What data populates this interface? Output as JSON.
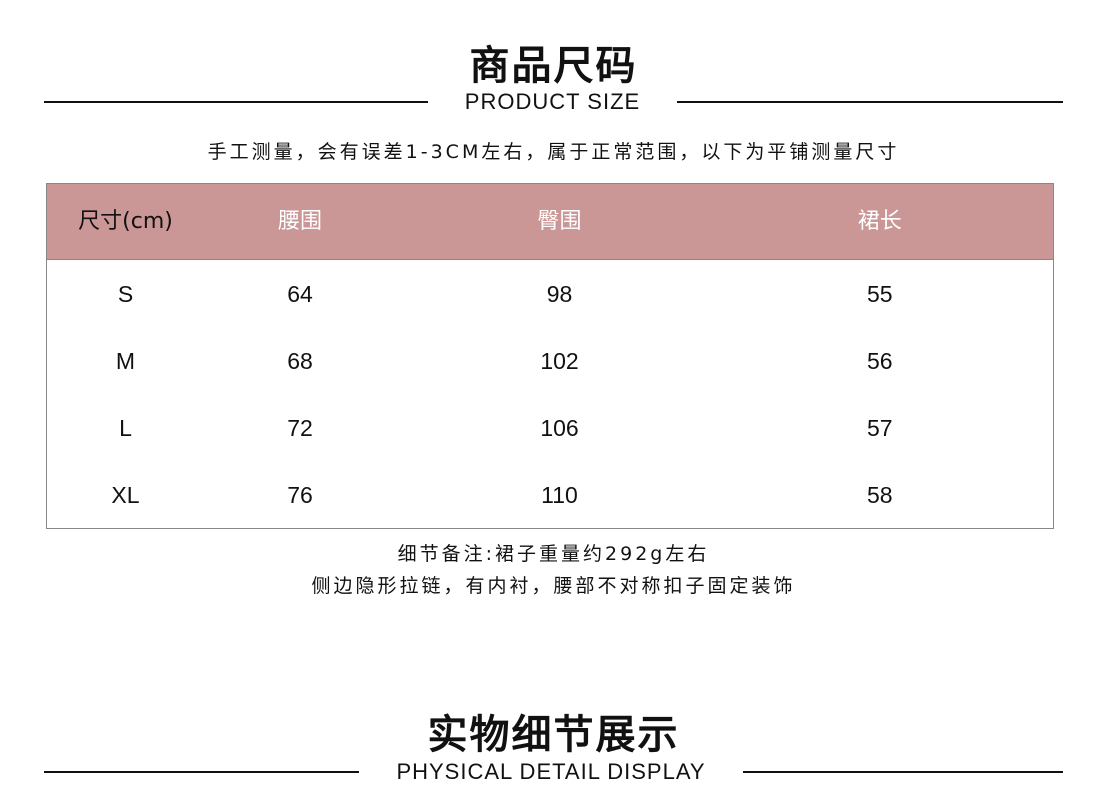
{
  "section1": {
    "title": "商品尺码",
    "subtitle": "PRODUCT SIZE"
  },
  "measure_note": "手工测量，会有误差1-3CM左右，属于正常范围，以下为平铺测量尺寸",
  "table": {
    "headers": [
      "尺寸(cm)",
      "腰围",
      "臀围",
      "裙长"
    ],
    "rows": [
      [
        "S",
        "64",
        "98",
        "55"
      ],
      [
        "M",
        "68",
        "102",
        "56"
      ],
      [
        "L",
        "72",
        "106",
        "57"
      ],
      [
        "XL",
        "76",
        "110",
        "58"
      ]
    ]
  },
  "detail_notes": [
    "细节备注:裙子重量约292g左右",
    "侧边隐形拉链，有内衬，腰部不对称扣子固定装饰"
  ],
  "section2": {
    "title": "实物细节展示",
    "subtitle": "PHYSICAL DETAIL DISPLAY"
  },
  "colors": {
    "header_bg": "#cb9696"
  }
}
